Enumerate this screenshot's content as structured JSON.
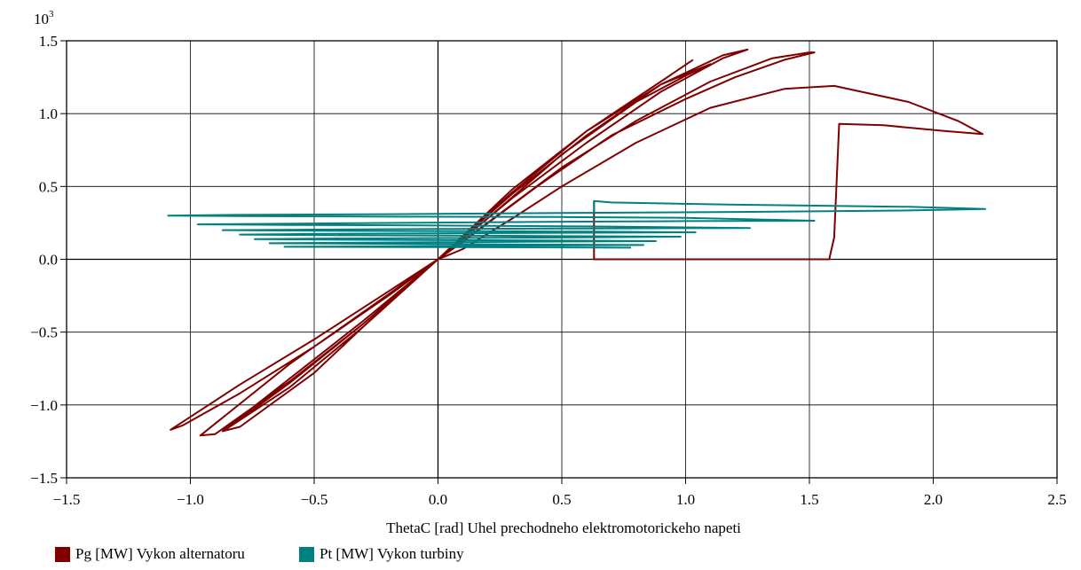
{
  "chart_data": {
    "type": "line",
    "xlabel": "ThetaC [rad] Uhel prechodneho elektromotorickeho napeti",
    "ylabel": "",
    "y_multiplier": "10",
    "y_multiplier_exp": "3",
    "xlim": [
      -1.5,
      2.5
    ],
    "ylim": [
      -1.5,
      1.5
    ],
    "xticks": [
      -1.5,
      -1.0,
      -0.5,
      0.0,
      0.5,
      1.0,
      1.5,
      2.0,
      2.5
    ],
    "yticks": [
      -1.5,
      -1.0,
      -0.5,
      0.0,
      0.5,
      1.0,
      1.5
    ],
    "xtick_labels": [
      "−1.5",
      "−1.0",
      "−0.5",
      "0.0",
      "0.5",
      "1.0",
      "1.5",
      "2.0",
      "2.5"
    ],
    "ytick_labels": [
      "−1.5",
      "−1.0",
      "−0.5",
      "0.0",
      "0.5",
      "1.0",
      "1.5"
    ],
    "grid": true,
    "legend_position": "bottom-left",
    "series": [
      {
        "name": "Pg [MW] Vykon alternatoru",
        "color": "#800000",
        "x": [
          0.63,
          0.63,
          1.58,
          1.6,
          1.62,
          1.62,
          1.8,
          2.05,
          2.2,
          2.1,
          1.9,
          1.6,
          1.4,
          1.1,
          0.8,
          0.5,
          0.3,
          0.1,
          0.0,
          -0.2,
          -0.5,
          -0.8,
          -1.08,
          -1.03,
          -0.8,
          -0.5,
          -0.2,
          0.0,
          0.2,
          0.5,
          0.8,
          1.1,
          1.35,
          1.5,
          1.52,
          1.4,
          1.2,
          1.0,
          0.7,
          0.4,
          0.1,
          0.0,
          -0.3,
          -0.6,
          -0.96,
          -0.9,
          -0.6,
          -0.3,
          0.0,
          0.3,
          0.6,
          0.9,
          1.15,
          1.25,
          1.15,
          0.9,
          0.6,
          0.3,
          0.0,
          -0.3,
          -0.6,
          -0.87,
          -0.8,
          -0.5,
          -0.2,
          0.0,
          0.3,
          0.6,
          0.9,
          1.1,
          1.0,
          0.8,
          0.5,
          0.2,
          0.0,
          -0.3,
          -0.6,
          -0.85,
          -0.6,
          -0.3,
          0.0,
          0.3,
          0.6,
          0.9,
          1.03
        ],
        "y": [
          0.4,
          0.0,
          0.0,
          0.15,
          0.93,
          0.93,
          0.92,
          0.88,
          0.86,
          0.95,
          1.08,
          1.19,
          1.17,
          1.04,
          0.8,
          0.5,
          0.28,
          0.07,
          0.0,
          -0.22,
          -0.55,
          -0.86,
          -1.17,
          -1.14,
          -0.92,
          -0.6,
          -0.25,
          0.0,
          0.25,
          0.63,
          0.95,
          1.22,
          1.38,
          1.42,
          1.42,
          1.37,
          1.25,
          1.1,
          0.85,
          0.5,
          0.12,
          0.0,
          -0.36,
          -0.72,
          -1.21,
          -1.2,
          -0.84,
          -0.44,
          0.0,
          0.42,
          0.8,
          1.15,
          1.38,
          1.44,
          1.4,
          1.2,
          0.88,
          0.48,
          0.0,
          -0.42,
          -0.82,
          -1.18,
          -1.15,
          -0.78,
          -0.3,
          0.0,
          0.45,
          0.85,
          1.2,
          1.34,
          1.26,
          1.08,
          0.72,
          0.28,
          0.0,
          -0.44,
          -0.85,
          -1.16,
          -0.88,
          -0.46,
          0.0,
          0.46,
          0.88,
          1.22,
          1.37
        ]
      },
      {
        "name": "Pt [MW] Vykon turbiny",
        "color": "#008080",
        "x": [
          0.63,
          0.63,
          0.7,
          1.2,
          1.9,
          2.21,
          1.9,
          1.2,
          0.5,
          -0.2,
          -0.8,
          -1.09,
          -0.8,
          -0.2,
          0.5,
          1.0,
          1.52,
          1.0,
          0.5,
          0.0,
          -0.5,
          -0.97,
          -0.6,
          0.0,
          0.6,
          1.26,
          0.6,
          0.0,
          -0.5,
          -0.87,
          -0.5,
          0.1,
          0.6,
          1.04,
          0.5,
          0.0,
          -0.5,
          -0.8,
          -0.4,
          0.2,
          0.6,
          0.98,
          0.5,
          0.0,
          -0.5,
          -0.74,
          -0.3,
          0.3,
          0.88,
          0.4,
          0.0,
          -0.4,
          -0.68,
          -0.2,
          0.3,
          0.83,
          0.3,
          -0.1,
          -0.62,
          -0.1,
          0.4,
          0.78
        ],
        "y": [
          0.31,
          0.4,
          0.39,
          0.375,
          0.36,
          0.345,
          0.335,
          0.325,
          0.318,
          0.31,
          0.305,
          0.3,
          0.297,
          0.293,
          0.29,
          0.285,
          0.265,
          0.262,
          0.258,
          0.252,
          0.246,
          0.24,
          0.236,
          0.232,
          0.226,
          0.215,
          0.212,
          0.208,
          0.204,
          0.2,
          0.196,
          0.193,
          0.19,
          0.185,
          0.182,
          0.178,
          0.174,
          0.17,
          0.165,
          0.162,
          0.158,
          0.155,
          0.15,
          0.146,
          0.142,
          0.138,
          0.134,
          0.13,
          0.125,
          0.121,
          0.117,
          0.113,
          0.11,
          0.106,
          0.102,
          0.098,
          0.094,
          0.09,
          0.086,
          0.084,
          0.082,
          0.08
        ]
      }
    ]
  }
}
